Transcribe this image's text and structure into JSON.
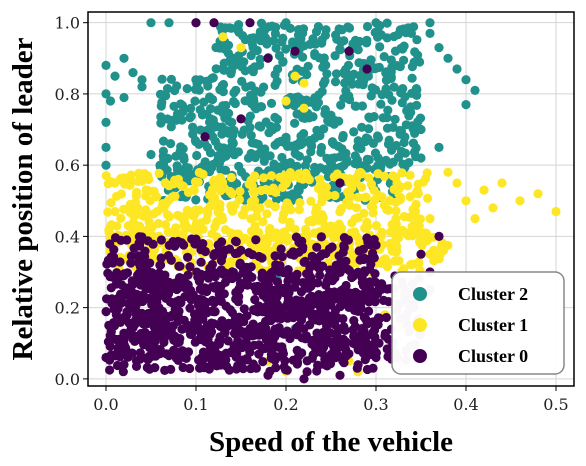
{
  "chart_data": {
    "type": "scatter",
    "xlabel": "Speed of the vehicle",
    "ylabel": "Relative position of leader",
    "xlim": [
      -0.02,
      0.52
    ],
    "ylim": [
      -0.02,
      1.03
    ],
    "xticks": [
      "0.0",
      "0.1",
      "0.2",
      "0.3",
      "0.4",
      "0.5"
    ],
    "yticks": [
      "0.0",
      "0.2",
      "0.4",
      "0.6",
      "0.8",
      "1.0"
    ],
    "grid": true,
    "legend_position": "bottom-right",
    "series": [
      {
        "name": "Cluster 2",
        "color": "#21918c",
        "regions": [
          {
            "x": [
              0.12,
              0.35
            ],
            "y": [
              0.58,
              1.0
            ]
          },
          {
            "x": [
              0.06,
              0.12
            ],
            "y": [
              0.55,
              0.85
            ]
          },
          {
            "x": [
              0.06,
              0.32
            ],
            "y": [
              0.5,
              0.6
            ]
          }
        ],
        "points": [
          [
            0.0,
            0.88
          ],
          [
            0.0,
            0.8
          ],
          [
            0.0,
            0.72
          ],
          [
            0.0,
            0.65
          ],
          [
            0.0,
            0.6
          ],
          [
            0.005,
            0.78
          ],
          [
            0.01,
            0.85
          ],
          [
            0.02,
            0.9
          ],
          [
            0.03,
            0.86
          ],
          [
            0.04,
            0.82
          ],
          [
            0.05,
            1.0
          ],
          [
            0.07,
            1.0
          ],
          [
            0.1,
            1.0
          ],
          [
            0.2,
            1.0
          ],
          [
            0.3,
            1.0
          ],
          [
            0.36,
            1.0
          ],
          [
            0.36,
            0.97
          ],
          [
            0.37,
            0.93
          ],
          [
            0.38,
            0.9
          ],
          [
            0.39,
            0.87
          ],
          [
            0.4,
            0.84
          ],
          [
            0.41,
            0.81
          ],
          [
            0.4,
            0.77
          ],
          [
            0.37,
            0.65
          ],
          [
            0.35,
            0.62
          ],
          [
            0.33,
            0.58
          ],
          [
            0.06,
            0.6
          ],
          [
            0.05,
            0.63
          ],
          [
            0.21,
            0.14
          ],
          [
            0.19,
            0.28
          ],
          [
            0.24,
            0.35
          ],
          [
            0.04,
            0.84
          ],
          [
            0.02,
            0.79
          ],
          [
            0.35,
            0.7
          ]
        ]
      },
      {
        "name": "Cluster 1",
        "color": "#fde725",
        "regions": [
          {
            "x": [
              0.0,
              0.36
            ],
            "y": [
              0.38,
              0.58
            ]
          },
          {
            "x": [
              0.0,
              0.38
            ],
            "y": [
              0.3,
              0.42
            ]
          }
        ],
        "points": [
          [
            0.39,
            0.55
          ],
          [
            0.4,
            0.5
          ],
          [
            0.41,
            0.45
          ],
          [
            0.43,
            0.48
          ],
          [
            0.44,
            0.55
          ],
          [
            0.46,
            0.5
          ],
          [
            0.48,
            0.52
          ],
          [
            0.5,
            0.47
          ],
          [
            0.42,
            0.53
          ],
          [
            0.38,
            0.58
          ],
          [
            0.36,
            0.45
          ],
          [
            0.01,
            0.55
          ],
          [
            0.01,
            0.47
          ],
          [
            0.21,
            0.85
          ],
          [
            0.22,
            0.83
          ],
          [
            0.2,
            0.78
          ],
          [
            0.22,
            0.76
          ],
          [
            0.15,
            0.93
          ],
          [
            0.13,
            0.96
          ],
          [
            0.14,
            0.52
          ],
          [
            0.24,
            0.12
          ],
          [
            0.27,
            0.05
          ],
          [
            0.3,
            0.1
          ],
          [
            0.33,
            0.15
          ],
          [
            0.28,
            0.02
          ],
          [
            0.31,
            0.18
          ],
          [
            0.35,
            0.28
          ],
          [
            0.36,
            0.35
          ],
          [
            0.2,
            0.02
          ],
          [
            0.18,
            0.05
          ]
        ]
      },
      {
        "name": "Cluster 0",
        "color": "#440154",
        "regions": [
          {
            "x": [
              0.0,
              0.3
            ],
            "y": [
              0.02,
              0.4
            ]
          },
          {
            "x": [
              0.0,
              0.35
            ],
            "y": [
              0.05,
              0.3
            ]
          }
        ],
        "points": [
          [
            0.1,
            1.0
          ],
          [
            0.12,
            1.0
          ],
          [
            0.16,
            1.0
          ],
          [
            0.18,
            0.9
          ],
          [
            0.21,
            0.92
          ],
          [
            0.27,
            0.92
          ],
          [
            0.29,
            0.87
          ],
          [
            0.11,
            0.68
          ],
          [
            0.15,
            0.73
          ],
          [
            0.26,
            0.55
          ],
          [
            0.18,
            0.01
          ],
          [
            0.22,
            0.0
          ],
          [
            0.26,
            0.01
          ],
          [
            0.3,
            0.06
          ],
          [
            0.31,
            0.12
          ],
          [
            0.34,
            0.2
          ],
          [
            0.36,
            0.3
          ],
          [
            0.37,
            0.4
          ],
          [
            0.35,
            0.35
          ],
          [
            0.36,
            0.25
          ],
          [
            0.02,
            0.04
          ],
          [
            0.0,
            0.06
          ],
          [
            0.33,
            0.26
          ]
        ]
      }
    ]
  }
}
